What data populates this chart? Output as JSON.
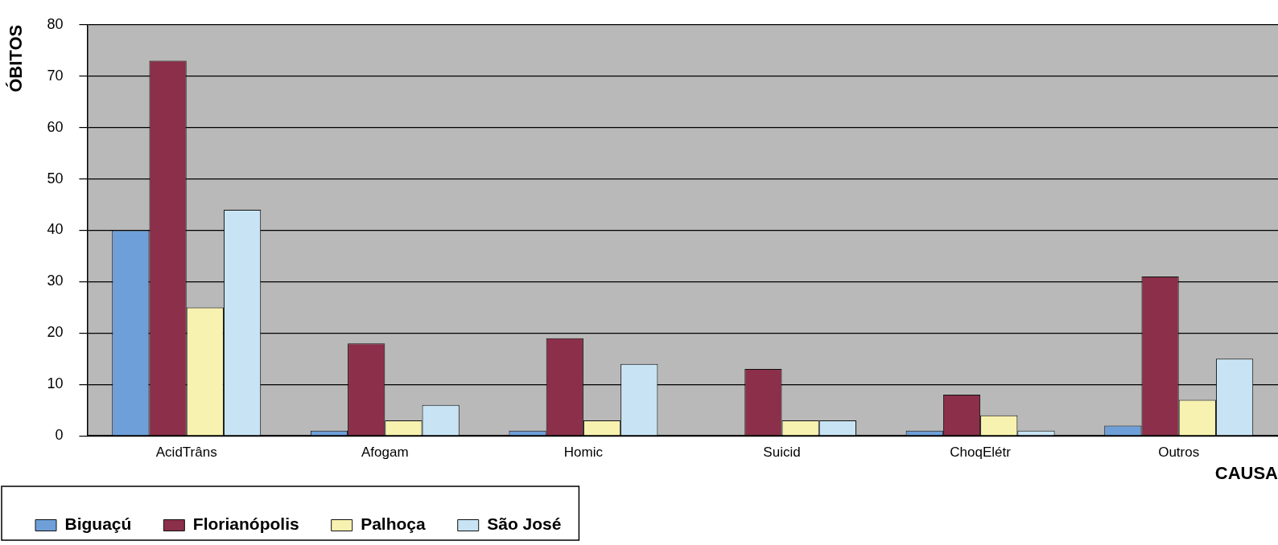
{
  "chart_data": {
    "type": "bar",
    "xlabel": "CAUSA",
    "ylabel": "ÓBITOS",
    "categories": [
      "AcidTrâns",
      "Afogam",
      "Homic",
      "Suicid",
      "ChoqElétr",
      "Outros"
    ],
    "series": [
      {
        "name": "Biguaçú",
        "color": "#6f9fd8",
        "values": [
          40,
          1,
          1,
          0,
          1,
          2
        ]
      },
      {
        "name": "Florianópolis",
        "color": "#8b2f4a",
        "values": [
          73,
          18,
          19,
          13,
          8,
          31
        ]
      },
      {
        "name": "Palhoça",
        "color": "#f8f2b0",
        "values": [
          25,
          3,
          3,
          3,
          4,
          7
        ]
      },
      {
        "name": "São José",
        "color": "#c8e4f4",
        "values": [
          44,
          6,
          14,
          3,
          1,
          15
        ]
      }
    ],
    "ylim": [
      0,
      80
    ],
    "yticks": [
      0,
      10,
      20,
      30,
      40,
      50,
      60,
      70,
      80
    ],
    "grid": "y",
    "legend": "bottom left"
  }
}
